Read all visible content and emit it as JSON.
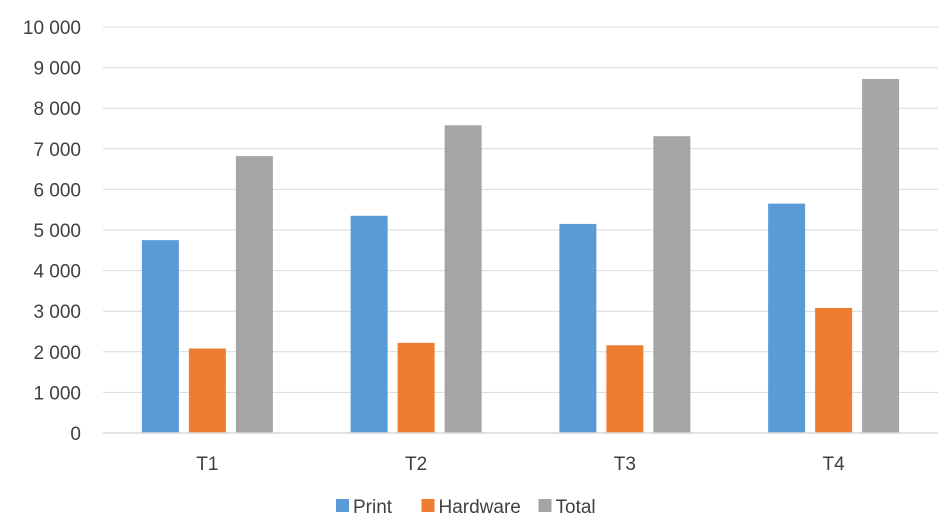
{
  "chart_data": {
    "type": "bar",
    "title": "",
    "xlabel": "",
    "ylabel": "",
    "categories": [
      "T1",
      "T2",
      "T3",
      "T4"
    ],
    "series": [
      {
        "name": "Print",
        "values": [
          4750,
          5350,
          5150,
          5650
        ],
        "color": "#5b9bd5"
      },
      {
        "name": "Hardware",
        "values": [
          2080,
          2220,
          2160,
          3080
        ],
        "color": "#ed7d31"
      },
      {
        "name": "Total",
        "values": [
          6820,
          7580,
          7310,
          8720
        ],
        "color": "#a5a5a5"
      }
    ],
    "ylim": [
      0,
      10000
    ],
    "yticks": [
      0,
      1000,
      2000,
      3000,
      4000,
      5000,
      6000,
      7000,
      8000,
      9000,
      10000
    ],
    "ytick_labels": [
      "0",
      "1 000",
      "2 000",
      "3 000",
      "4 000",
      "5 000",
      "6 000",
      "7 000",
      "8 000",
      "9 000",
      "10 000"
    ],
    "grid": true,
    "legend_position": "bottom",
    "colors": {
      "grid": "#d9d9d9",
      "axis": "#d9d9d9",
      "text": "#404040"
    }
  }
}
